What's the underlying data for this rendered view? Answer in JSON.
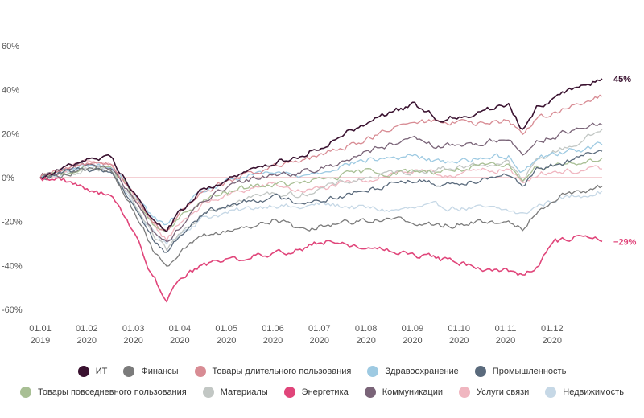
{
  "chart_data": {
    "type": "line",
    "title": "",
    "xlabel": "",
    "ylabel": "",
    "ylim": [
      -60,
      60
    ],
    "y_ticks": [
      "60%",
      "40%",
      "20%",
      "0%",
      "-20%",
      "-40%",
      "-60%"
    ],
    "y_tick_values": [
      60,
      40,
      20,
      0,
      -20,
      -40,
      -60
    ],
    "x_ticks": [
      {
        "line1": "01.01",
        "line2": "2019",
        "month_index": 0
      },
      {
        "line1": "01.02",
        "line2": "2020",
        "month_index": 1
      },
      {
        "line1": "01.03",
        "line2": "2020",
        "month_index": 2
      },
      {
        "line1": "01.04",
        "line2": "2020",
        "month_index": 3
      },
      {
        "line1": "01.05",
        "line2": "2020",
        "month_index": 4
      },
      {
        "line1": "01.06",
        "line2": "2020",
        "month_index": 5
      },
      {
        "line1": "01.07",
        "line2": "2020",
        "month_index": 6
      },
      {
        "line1": "01.08",
        "line2": "2020",
        "month_index": 7
      },
      {
        "line1": "01.09",
        "line2": "2020",
        "month_index": 8
      },
      {
        "line1": "01.10",
        "line2": "2020",
        "month_index": 9
      },
      {
        "line1": "01.11",
        "line2": "2020",
        "month_index": 10
      },
      {
        "line1": "01.12",
        "line2": "2020",
        "month_index": 11
      }
    ],
    "x_domain": [
      0,
      12
    ],
    "x_anchors": [
      0,
      0.5,
      1,
      1.5,
      2,
      2.4,
      2.7,
      3,
      3.5,
      4,
      4.5,
      5,
      5.5,
      6,
      6.5,
      7,
      7.5,
      8,
      8.5,
      9,
      9.5,
      10,
      10.3,
      10.6,
      11,
      11.5,
      12
    ],
    "zero_line_color": "#e8a0a8",
    "end_labels": [
      {
        "text": "45%",
        "series": "ИТ",
        "color": "#3a1230",
        "value": 45
      },
      {
        "text": "−29%",
        "series": "Энергетика",
        "color": "#e0457a",
        "value": -29
      }
    ],
    "series": [
      {
        "name": "Недвижимость",
        "color": "#c6d8e6",
        "values": [
          0,
          2,
          5,
          4,
          -12,
          -25,
          -30,
          -25,
          -18,
          -16,
          -14,
          -12,
          -14,
          -12,
          -13,
          -14,
          -15,
          -14,
          -13,
          -14,
          -14,
          -15,
          -17,
          -13,
          -10,
          -8,
          -6
        ]
      },
      {
        "name": "Услуги связи",
        "color": "#f0b6c0",
        "values": [
          0,
          3,
          7,
          6,
          -8,
          -22,
          -28,
          -20,
          -12,
          -8,
          -5,
          -3,
          -6,
          -5,
          -3,
          -1,
          2,
          3,
          1,
          2,
          3,
          4,
          -3,
          2,
          3,
          3,
          4
        ]
      },
      {
        "name": "Материалы",
        "color": "#c2c7c4",
        "values": [
          0,
          2,
          4,
          3,
          -12,
          -27,
          -33,
          -25,
          -15,
          -12,
          -9,
          -7,
          -8,
          -5,
          -2,
          0,
          2,
          3,
          4,
          5,
          6,
          7,
          -2,
          8,
          12,
          16,
          22
        ]
      },
      {
        "name": "Товары повседневного пользования",
        "color": "#a8bf94",
        "values": [
          0,
          2,
          5,
          5,
          -8,
          -22,
          -25,
          -18,
          -10,
          -7,
          -4,
          -3,
          -3,
          -1,
          1,
          3,
          2,
          3,
          3,
          4,
          5,
          5,
          0,
          5,
          6,
          7,
          9
        ]
      },
      {
        "name": "Здравоохранение",
        "color": "#9ecae2",
        "values": [
          0,
          3,
          6,
          5,
          -6,
          -18,
          -22,
          -15,
          -6,
          -2,
          1,
          2,
          1,
          3,
          6,
          8,
          9,
          10,
          7,
          8,
          9,
          10,
          3,
          9,
          11,
          13,
          15
        ]
      },
      {
        "name": "Промышленность",
        "color": "#5a6a7c",
        "values": [
          0,
          2,
          4,
          3,
          -12,
          -28,
          -34,
          -26,
          -16,
          -13,
          -10,
          -9,
          -11,
          -10,
          -8,
          -6,
          -2,
          -1,
          -3,
          -2,
          0,
          2,
          -5,
          3,
          6,
          9,
          12
        ]
      },
      {
        "name": "Коммуникации",
        "color": "#7a6478",
        "values": [
          0,
          3,
          6,
          5,
          -10,
          -24,
          -30,
          -22,
          -10,
          -5,
          -1,
          2,
          2,
          4,
          8,
          12,
          15,
          17,
          14,
          15,
          16,
          18,
          10,
          17,
          19,
          22,
          24
        ]
      },
      {
        "name": "Товары длительного пользования",
        "color": "#d88c94",
        "values": [
          0,
          3,
          7,
          7,
          -8,
          -20,
          -24,
          -16,
          -6,
          -2,
          2,
          5,
          7,
          10,
          14,
          18,
          22,
          25,
          26,
          25,
          24,
          26,
          20,
          27,
          30,
          33,
          37
        ]
      },
      {
        "name": "Финансы",
        "color": "#7b7b7b",
        "values": [
          0,
          2,
          4,
          3,
          -15,
          -32,
          -40,
          -33,
          -27,
          -24,
          -22,
          -19,
          -23,
          -22,
          -20,
          -19,
          -19,
          -20,
          -22,
          -21,
          -20,
          -20,
          -23,
          -15,
          -9,
          -6,
          -4
        ]
      },
      {
        "name": "ИТ",
        "color": "#3a1230",
        "values": [
          0,
          4,
          9,
          9,
          -6,
          -20,
          -24,
          -15,
          -5,
          -1,
          3,
          7,
          10,
          14,
          20,
          26,
          30,
          33,
          27,
          28,
          31,
          33,
          22,
          32,
          37,
          41,
          45
        ]
      },
      {
        "name": "Энергетика",
        "color": "#e0457a",
        "values": [
          0,
          -1,
          -5,
          -8,
          -25,
          -45,
          -55,
          -45,
          -40,
          -37,
          -36,
          -34,
          -33,
          -29,
          -30,
          -32,
          -33,
          -35,
          -37,
          -39,
          -41,
          -42,
          -45,
          -40,
          -30,
          -26,
          -29
        ]
      }
    ],
    "legend_rows": [
      [
        "ИТ",
        "Финансы",
        "Товары длительного пользования",
        "Здравоохранение",
        "Промышленность"
      ],
      [
        "Товары повседневного пользования",
        "Материалы",
        "Энергетика",
        "Коммуникации",
        "Услуги связи",
        "Недвижимость"
      ]
    ],
    "grid": false,
    "legend_position": "bottom"
  }
}
